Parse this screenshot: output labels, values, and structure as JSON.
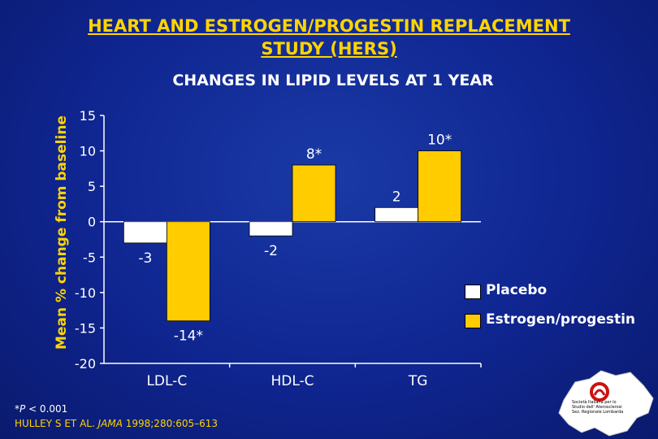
{
  "header": {
    "title_line1": "HEART AND ESTROGEN/PROGESTIN REPLACEMENT",
    "title_line2": "STUDY (HERS)",
    "subtitle": "CHANGES IN LIPID LEVELS AT 1 YEAR"
  },
  "colors": {
    "background": "#0f2590",
    "title": "#ffd400",
    "placebo": "#ffffff",
    "estrogen": "#ffcc00"
  },
  "chart_data": {
    "type": "bar",
    "categories": [
      "LDL-C",
      "HDL-C",
      "TG"
    ],
    "series": [
      {
        "name": "Placebo",
        "values": [
          -3,
          -2,
          2
        ],
        "labels": [
          "-3",
          "-2",
          "2"
        ],
        "color": "#ffffff"
      },
      {
        "name": "Estrogen/progestin",
        "values": [
          -14,
          8,
          10
        ],
        "labels": [
          "-14*",
          "8*",
          "10*"
        ],
        "color": "#ffcc00"
      }
    ],
    "ylabel": "Mean % change from baseline",
    "ylim": [
      -20,
      15
    ],
    "yticks": [
      15,
      10,
      5,
      0,
      -5,
      -10,
      -15,
      -20
    ],
    "grid": false,
    "legend_position": "right"
  },
  "footnote": {
    "marker": "*",
    "p_letter": "P",
    "text": " < 0.001"
  },
  "citation": {
    "authors": "HULLEY S ET AL. ",
    "journal": "JAMA",
    "details": " 1998;280:605–613"
  },
  "logo": {
    "line1": "Società Italiana per lo",
    "line2": "Studio dell' Aterosclerosi",
    "line3": "Sez. Regionale Lombarda"
  }
}
